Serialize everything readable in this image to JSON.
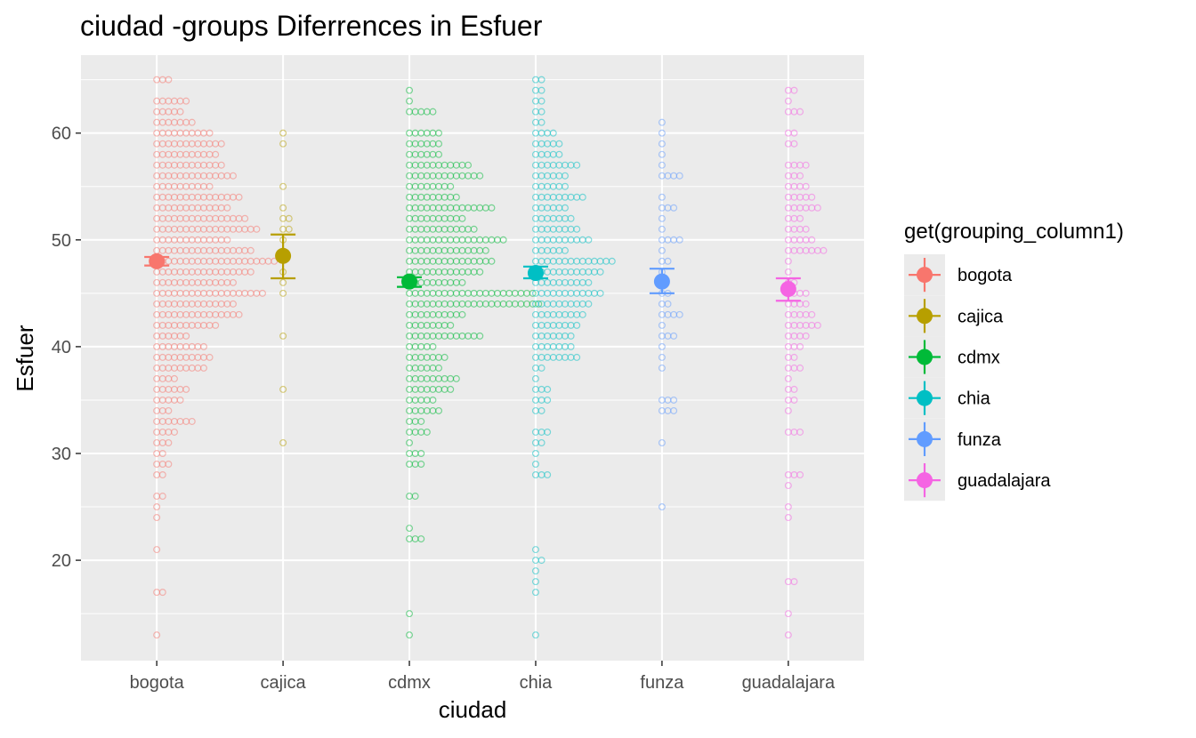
{
  "chart_data": {
    "type": "scatter",
    "title": "ciudad -groups Diferrences in  Esfuer",
    "xlabel": "ciudad",
    "ylabel": "Esfuer",
    "categories": [
      "bogota",
      "cajica",
      "cdmx",
      "chia",
      "funza",
      "guadalajara"
    ],
    "ylim": [
      10.6,
      67.3
    ],
    "yticks": [
      20,
      30,
      40,
      50,
      60
    ],
    "grid": true,
    "legend": {
      "title": "get(grouping_column1)",
      "position": "right",
      "entries": [
        "bogota",
        "cajica",
        "cdmx",
        "chia",
        "funza",
        "guadalajara"
      ]
    },
    "series": [
      {
        "name": "bogota",
        "color": "#F8766D",
        "mean": 48.0,
        "ci_low": 47.6,
        "ci_high": 48.4,
        "distribution": [
          [
            13,
            1
          ],
          [
            17,
            2
          ],
          [
            21,
            1
          ],
          [
            24,
            1
          ],
          [
            25,
            1
          ],
          [
            26,
            2
          ],
          [
            28,
            2
          ],
          [
            29,
            3
          ],
          [
            30,
            2
          ],
          [
            31,
            3
          ],
          [
            32,
            4
          ],
          [
            33,
            7
          ],
          [
            34,
            3
          ],
          [
            35,
            5
          ],
          [
            36,
            6
          ],
          [
            37,
            4
          ],
          [
            38,
            9
          ],
          [
            39,
            10
          ],
          [
            40,
            9
          ],
          [
            41,
            6
          ],
          [
            42,
            11
          ],
          [
            43,
            15
          ],
          [
            44,
            14
          ],
          [
            45,
            19
          ],
          [
            46,
            14
          ],
          [
            47,
            17
          ],
          [
            48,
            21
          ],
          [
            49,
            17
          ],
          [
            50,
            13
          ],
          [
            51,
            18
          ],
          [
            52,
            16
          ],
          [
            53,
            13
          ],
          [
            54,
            15
          ],
          [
            55,
            10
          ],
          [
            56,
            14
          ],
          [
            57,
            12
          ],
          [
            58,
            11
          ],
          [
            59,
            12
          ],
          [
            60,
            10
          ],
          [
            61,
            7
          ],
          [
            62,
            5
          ],
          [
            63,
            6
          ],
          [
            65,
            3
          ]
        ]
      },
      {
        "name": "cajica",
        "color": "#B79F00",
        "mean": 48.5,
        "ci_low": 46.4,
        "ci_high": 50.5,
        "distribution": [
          [
            31,
            1
          ],
          [
            36,
            1
          ],
          [
            41,
            1
          ],
          [
            45,
            1
          ],
          [
            46,
            1
          ],
          [
            47,
            1
          ],
          [
            50,
            1
          ],
          [
            51,
            2
          ],
          [
            52,
            2
          ],
          [
            53,
            1
          ],
          [
            55,
            1
          ],
          [
            59,
            1
          ],
          [
            60,
            1
          ]
        ]
      },
      {
        "name": "cdmx",
        "color": "#00BA38",
        "mean": 46.1,
        "ci_low": 45.6,
        "ci_high": 46.5,
        "distribution": [
          [
            13,
            1
          ],
          [
            15,
            1
          ],
          [
            22,
            3
          ],
          [
            23,
            1
          ],
          [
            26,
            2
          ],
          [
            29,
            3
          ],
          [
            30,
            3
          ],
          [
            31,
            1
          ],
          [
            32,
            4
          ],
          [
            33,
            3
          ],
          [
            34,
            6
          ],
          [
            35,
            5
          ],
          [
            36,
            8
          ],
          [
            37,
            9
          ],
          [
            38,
            6
          ],
          [
            39,
            7
          ],
          [
            40,
            5
          ],
          [
            41,
            13
          ],
          [
            42,
            8
          ],
          [
            43,
            10
          ],
          [
            44,
            23
          ],
          [
            45,
            22
          ],
          [
            46,
            10
          ],
          [
            47,
            13
          ],
          [
            48,
            15
          ],
          [
            49,
            14
          ],
          [
            50,
            17
          ],
          [
            51,
            12
          ],
          [
            52,
            10
          ],
          [
            53,
            15
          ],
          [
            54,
            9
          ],
          [
            55,
            8
          ],
          [
            56,
            13
          ],
          [
            57,
            11
          ],
          [
            58,
            6
          ],
          [
            59,
            6
          ],
          [
            60,
            6
          ],
          [
            62,
            5
          ],
          [
            63,
            1
          ],
          [
            64,
            1
          ]
        ]
      },
      {
        "name": "chia",
        "color": "#00BFC4",
        "mean": 46.9,
        "ci_low": 46.4,
        "ci_high": 47.5,
        "distribution": [
          [
            13,
            1
          ],
          [
            17,
            1
          ],
          [
            18,
            1
          ],
          [
            19,
            1
          ],
          [
            20,
            2
          ],
          [
            21,
            1
          ],
          [
            28,
            3
          ],
          [
            29,
            1
          ],
          [
            30,
            1
          ],
          [
            31,
            2
          ],
          [
            32,
            3
          ],
          [
            34,
            2
          ],
          [
            35,
            3
          ],
          [
            36,
            3
          ],
          [
            37,
            1
          ],
          [
            38,
            2
          ],
          [
            39,
            8
          ],
          [
            40,
            7
          ],
          [
            41,
            7
          ],
          [
            42,
            8
          ],
          [
            43,
            9
          ],
          [
            44,
            10
          ],
          [
            45,
            12
          ],
          [
            46,
            10
          ],
          [
            47,
            12
          ],
          [
            48,
            14
          ],
          [
            49,
            6
          ],
          [
            50,
            10
          ],
          [
            51,
            8
          ],
          [
            52,
            7
          ],
          [
            53,
            6
          ],
          [
            54,
            9
          ],
          [
            55,
            6
          ],
          [
            56,
            6
          ],
          [
            57,
            8
          ],
          [
            58,
            5
          ],
          [
            59,
            5
          ],
          [
            60,
            4
          ],
          [
            61,
            2
          ],
          [
            62,
            2
          ],
          [
            63,
            2
          ],
          [
            64,
            2
          ],
          [
            65,
            2
          ]
        ]
      },
      {
        "name": "funza",
        "color": "#619CFF",
        "mean": 46.1,
        "ci_low": 45.0,
        "ci_high": 47.3,
        "distribution": [
          [
            25,
            1
          ],
          [
            31,
            1
          ],
          [
            34,
            3
          ],
          [
            35,
            3
          ],
          [
            38,
            1
          ],
          [
            39,
            1
          ],
          [
            40,
            1
          ],
          [
            41,
            3
          ],
          [
            42,
            1
          ],
          [
            43,
            4
          ],
          [
            44,
            2
          ],
          [
            45,
            2
          ],
          [
            46,
            1
          ],
          [
            47,
            1
          ],
          [
            48,
            2
          ],
          [
            49,
            1
          ],
          [
            50,
            4
          ],
          [
            51,
            1
          ],
          [
            52,
            1
          ],
          [
            53,
            3
          ],
          [
            54,
            1
          ],
          [
            56,
            4
          ],
          [
            57,
            1
          ],
          [
            58,
            1
          ],
          [
            59,
            1
          ],
          [
            60,
            1
          ],
          [
            61,
            1
          ]
        ]
      },
      {
        "name": "guadalajara",
        "color": "#F564E3",
        "mean": 45.4,
        "ci_low": 44.3,
        "ci_high": 46.4,
        "distribution": [
          [
            13,
            1
          ],
          [
            15,
            1
          ],
          [
            18,
            2
          ],
          [
            24,
            1
          ],
          [
            25,
            1
          ],
          [
            27,
            1
          ],
          [
            28,
            3
          ],
          [
            32,
            3
          ],
          [
            34,
            1
          ],
          [
            35,
            2
          ],
          [
            36,
            2
          ],
          [
            37,
            1
          ],
          [
            38,
            3
          ],
          [
            39,
            2
          ],
          [
            40,
            3
          ],
          [
            41,
            4
          ],
          [
            42,
            6
          ],
          [
            43,
            5
          ],
          [
            44,
            4
          ],
          [
            45,
            4
          ],
          [
            46,
            2
          ],
          [
            47,
            1
          ],
          [
            48,
            1
          ],
          [
            49,
            7
          ],
          [
            50,
            5
          ],
          [
            51,
            4
          ],
          [
            52,
            3
          ],
          [
            53,
            6
          ],
          [
            54,
            5
          ],
          [
            55,
            4
          ],
          [
            56,
            3
          ],
          [
            57,
            4
          ],
          [
            59,
            2
          ],
          [
            60,
            2
          ],
          [
            62,
            3
          ],
          [
            63,
            1
          ],
          [
            64,
            2
          ]
        ]
      }
    ]
  }
}
